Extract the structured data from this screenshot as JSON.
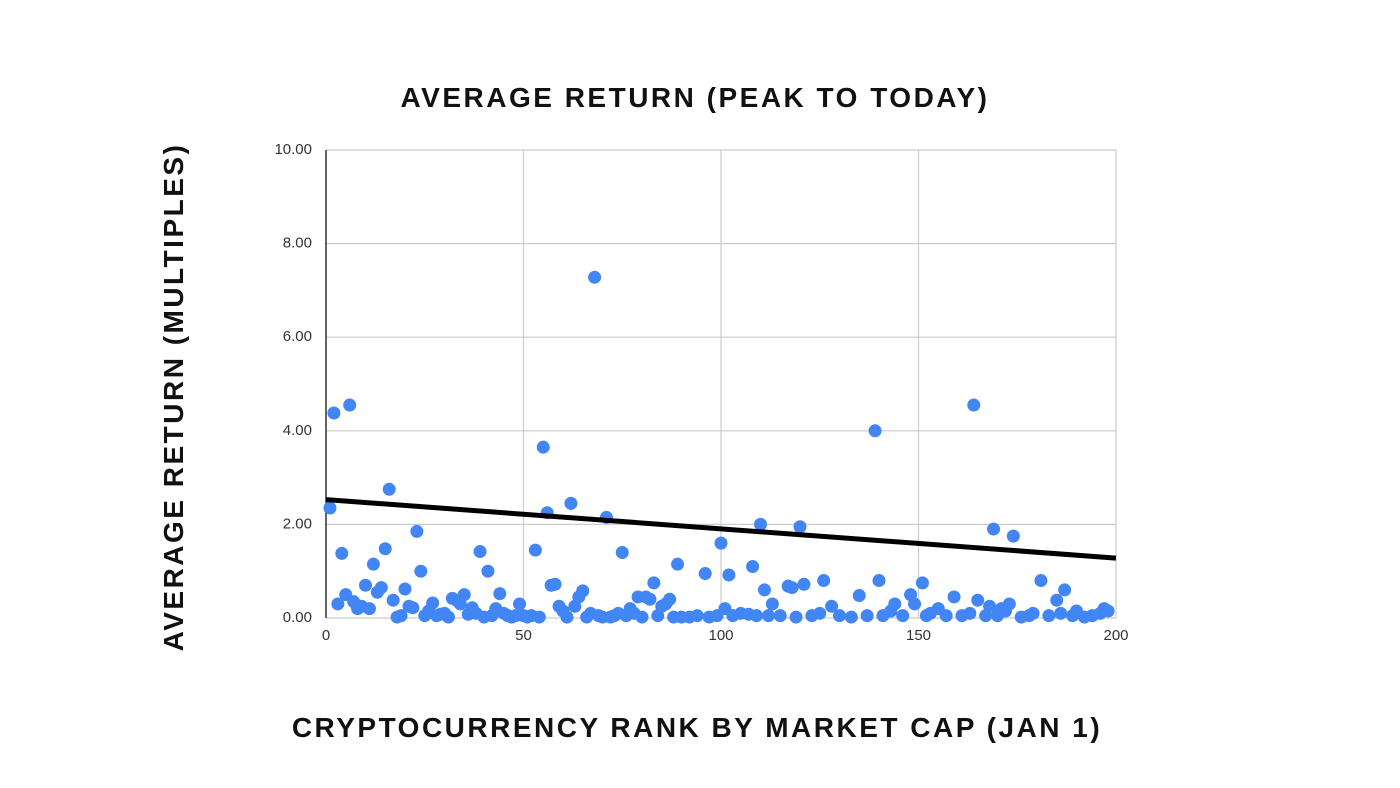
{
  "chart_data": {
    "type": "scatter",
    "title": "AVERAGE RETURN (PEAK TO TODAY)",
    "x_label": "CRYPTOCURRENCY RANK BY MARKET CAP (JAN 1)",
    "y_label": "AVERAGE RETURN (MULTIPLES)",
    "color": "#4285f4",
    "grid": true,
    "xlim": [
      0,
      200
    ],
    "ylim": [
      0,
      10
    ],
    "xticks": [
      0,
      50,
      100,
      150,
      200
    ],
    "yticks": [
      {
        "value": 0,
        "label": "0.00"
      },
      {
        "value": 2,
        "label": "2.00"
      },
      {
        "value": 4,
        "label": "4.00"
      },
      {
        "value": 6,
        "label": "6.00"
      },
      {
        "value": 8,
        "label": "8.00"
      },
      {
        "value": 10,
        "label": "10.00"
      }
    ],
    "x": [
      1,
      2,
      3,
      4,
      5,
      6,
      7,
      8,
      9,
      10,
      11,
      12,
      13,
      14,
      15,
      16,
      17,
      18,
      19,
      20,
      21,
      22,
      23,
      24,
      25,
      26,
      27,
      28,
      29,
      30,
      31,
      32,
      33,
      34,
      35,
      36,
      37,
      38,
      39,
      40,
      41,
      42,
      43,
      44,
      45,
      46,
      47,
      48,
      49,
      50,
      51,
      52,
      53,
      54,
      55,
      56,
      57,
      58,
      59,
      60,
      61,
      62,
      63,
      64,
      65,
      66,
      67,
      68,
      69,
      70,
      71,
      72,
      73,
      74,
      75,
      76,
      77,
      78,
      79,
      80,
      81,
      82,
      83,
      84,
      85,
      86,
      87,
      88,
      89,
      90,
      92,
      94,
      96,
      97,
      99,
      100,
      101,
      102,
      103,
      105,
      107,
      108,
      109,
      110,
      111,
      112,
      113,
      115,
      117,
      118,
      119,
      120,
      121,
      123,
      125,
      126,
      128,
      130,
      133,
      135,
      137,
      139,
      140,
      141,
      143,
      144,
      146,
      148,
      149,
      151,
      152,
      153,
      155,
      157,
      159,
      161,
      163,
      164,
      165,
      167,
      168,
      169,
      170,
      171,
      172,
      173,
      174,
      176,
      178,
      179,
      181,
      183,
      185,
      186,
      187,
      189,
      190,
      192,
      194,
      196,
      197,
      198
    ],
    "values": [
      2.35,
      4.38,
      0.3,
      1.38,
      0.5,
      4.55,
      0.35,
      0.2,
      0.25,
      0.7,
      0.2,
      1.15,
      0.55,
      0.65,
      1.48,
      2.75,
      0.38,
      0.02,
      0.05,
      0.62,
      0.25,
      0.22,
      1.85,
      1.0,
      0.05,
      0.15,
      0.32,
      0.05,
      0.08,
      0.1,
      0.02,
      0.42,
      0.38,
      0.3,
      0.5,
      0.08,
      0.22,
      0.1,
      1.42,
      0.02,
      1.0,
      0.05,
      0.2,
      0.52,
      0.1,
      0.05,
      0.02,
      0.05,
      0.3,
      0.05,
      0.02,
      0.05,
      1.45,
      0.02,
      3.65,
      2.25,
      0.7,
      0.72,
      0.25,
      0.15,
      0.02,
      2.45,
      0.25,
      0.45,
      0.58,
      0.02,
      0.1,
      7.28,
      0.05,
      0.02,
      2.15,
      0.02,
      0.05,
      0.1,
      1.4,
      0.05,
      0.2,
      0.1,
      0.45,
      0.02,
      0.45,
      0.4,
      0.75,
      0.05,
      0.25,
      0.3,
      0.4,
      0.02,
      1.15,
      0.02,
      0.02,
      0.05,
      0.95,
      0.02,
      0.05,
      1.6,
      0.2,
      0.92,
      0.05,
      0.1,
      0.08,
      1.1,
      0.05,
      2.0,
      0.6,
      0.05,
      0.3,
      0.05,
      0.68,
      0.65,
      0.02,
      1.95,
      0.72,
      0.05,
      0.1,
      0.8,
      0.25,
      0.05,
      0.02,
      0.48,
      0.05,
      4.0,
      0.8,
      0.05,
      0.15,
      0.3,
      0.05,
      0.5,
      0.3,
      0.75,
      0.05,
      0.1,
      0.2,
      0.05,
      0.45,
      0.05,
      0.1,
      4.55,
      0.38,
      0.05,
      0.25,
      1.9,
      0.05,
      0.2,
      0.15,
      0.3,
      1.75,
      0.02,
      0.05,
      0.1,
      0.8,
      0.05,
      0.38,
      0.1,
      0.6,
      0.05,
      0.15,
      0.02,
      0.05,
      0.1,
      0.2,
      0.15
    ],
    "trendline": {
      "color": "#000000",
      "x": [
        0,
        200
      ],
      "values": [
        2.53,
        1.28
      ]
    }
  }
}
